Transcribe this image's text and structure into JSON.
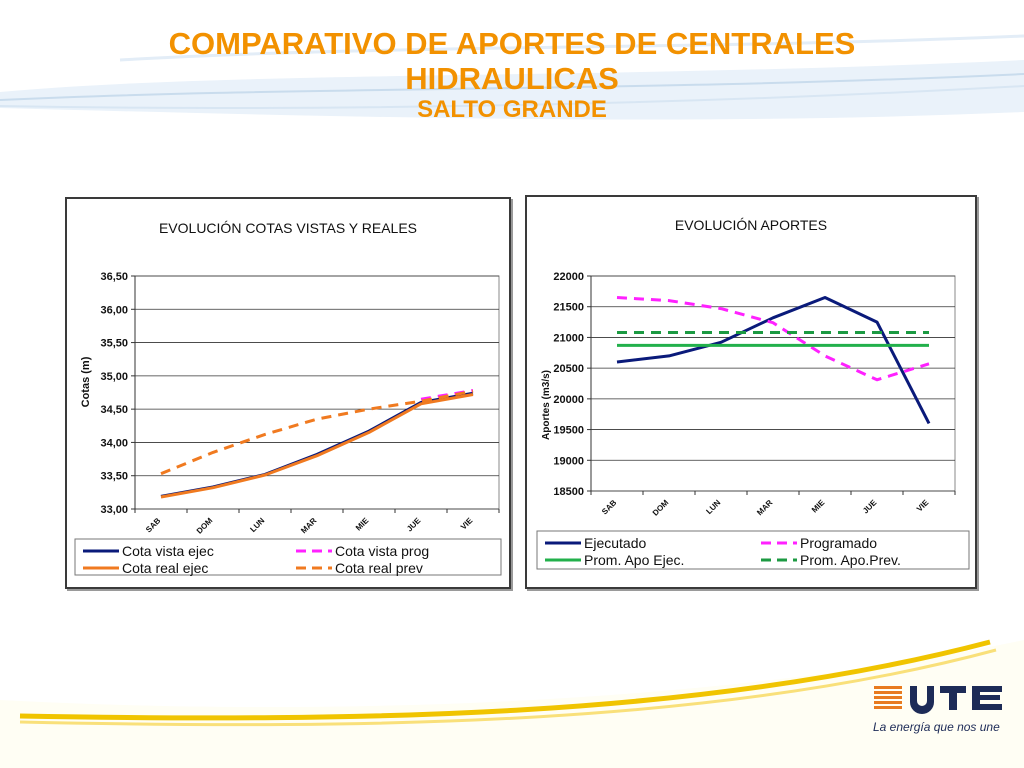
{
  "title": {
    "line1": "COMPARATIVO DE APORTES DE CENTRALES",
    "line2": "HIDRAULICAS",
    "line3": "SALTO GRANDE"
  },
  "colors": {
    "title": "#f29100",
    "navy": "#0a1a7a",
    "orange": "#f07a20",
    "magenta": "#ff21ff",
    "green": "#22b04b",
    "green_dash": "#1c9a42"
  },
  "logo": {
    "name": "UTE",
    "tagline": "La energía que nos une",
    "icon": "ute-logo-icon"
  },
  "chart_data": [
    {
      "type": "line",
      "title": "EVOLUCIÓN  COTAS VISTAS Y REALES",
      "xlabel": "",
      "ylabel": "Cotas (m)",
      "categories": [
        "SAB",
        "DOM",
        "LUN",
        "MAR",
        "MIE",
        "JUE",
        "VIE"
      ],
      "ylim": [
        33.0,
        36.5
      ],
      "yticks": [
        "33,00",
        "33,50",
        "34,00",
        "34,50",
        "35,00",
        "35,50",
        "36,00",
        "36,50"
      ],
      "grid": true,
      "legend_position": "bottom",
      "series": [
        {
          "name": "Cota vista ejec",
          "color": "#0a1a7a",
          "dash": false,
          "values": [
            33.19,
            33.33,
            33.52,
            33.82,
            34.17,
            34.6,
            34.74
          ]
        },
        {
          "name": "Cota vista prog",
          "color": "#ff21ff",
          "dash": true,
          "values": [
            null,
            null,
            null,
            null,
            null,
            34.65,
            34.78
          ]
        },
        {
          "name": "Cota real ejec",
          "color": "#f07a20",
          "dash": false,
          "values": [
            33.18,
            33.32,
            33.51,
            33.8,
            34.15,
            34.58,
            34.72
          ]
        },
        {
          "name": "Cota real prev",
          "color": "#f07a20",
          "dash": true,
          "values": [
            33.53,
            33.85,
            34.12,
            34.35,
            34.5,
            34.62,
            34.77
          ]
        }
      ]
    },
    {
      "type": "line",
      "title": "EVOLUCIÓN  APORTES",
      "xlabel": "",
      "ylabel": "Aportes (m3/s)",
      "categories": [
        "SAB",
        "DOM",
        "LUN",
        "MAR",
        "MIE",
        "JUE",
        "VIE"
      ],
      "ylim": [
        18500,
        22000
      ],
      "yticks": [
        "18500",
        "19000",
        "19500",
        "20000",
        "20500",
        "21000",
        "21500",
        "22000"
      ],
      "grid": true,
      "legend_position": "bottom",
      "series": [
        {
          "name": "Ejecutado",
          "color": "#0a1a7a",
          "dash": false,
          "values": [
            20600,
            20700,
            20920,
            21320,
            21650,
            21250,
            19600
          ]
        },
        {
          "name": "Programado",
          "color": "#ff21ff",
          "dash": true,
          "values": [
            21650,
            21600,
            21470,
            21240,
            20700,
            20310,
            20570
          ]
        },
        {
          "name": "Prom. Apo Ejec.",
          "color": "#22b04b",
          "dash": false,
          "values": [
            20870,
            20870,
            20870,
            20870,
            20870,
            20870,
            20870
          ]
        },
        {
          "name": "Prom. Apo.Prev.",
          "color": "#1c9a42",
          "dash": true,
          "values": [
            21080,
            21080,
            21080,
            21080,
            21080,
            21080,
            21080
          ]
        }
      ]
    }
  ]
}
